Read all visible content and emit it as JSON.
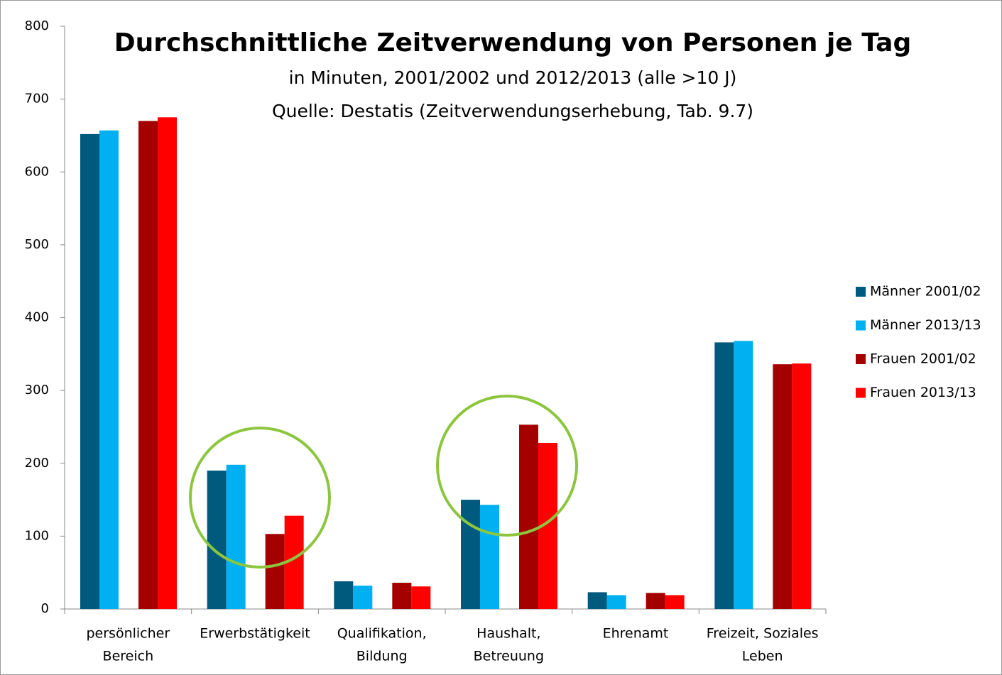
{
  "chart_data": {
    "type": "bar",
    "title": "Durchschnittliche Zeitverwendung von Personen je Tag",
    "subtitle": [
      "in Minuten, 2001/2002 und 2012/2013 (alle >10 J)",
      "Quelle: Destatis (Zeitverwendungserhebung,  Tab. 9.7)"
    ],
    "categories": [
      [
        "persönlicher",
        "Bereich"
      ],
      [
        "Erwerbstätigkeit"
      ],
      [
        "Qualifikation,",
        "Bildung"
      ],
      [
        "Haushalt,",
        "Betreuung"
      ],
      [
        "Ehrenamt"
      ],
      [
        "Freizeit, Soziales",
        "Leben"
      ]
    ],
    "series": [
      {
        "name": "Männer 2001/02",
        "color": "#005a7d",
        "values": [
          652,
          190,
          38,
          150,
          23,
          366
        ]
      },
      {
        "name": "Männer 2013/13",
        "color": "#00b0f0",
        "values": [
          657,
          198,
          32,
          143,
          19,
          368
        ]
      },
      {
        "name": "Frauen 2001/02",
        "color": "#a50000",
        "values": [
          670,
          103,
          36,
          253,
          22,
          336
        ]
      },
      {
        "name": "Frauen 2013/13",
        "color": "#ff0000",
        "values": [
          675,
          128,
          31,
          228,
          19,
          337
        ]
      }
    ],
    "ylim": [
      0,
      800
    ],
    "yticks": [
      0,
      100,
      200,
      300,
      400,
      500,
      600,
      700,
      800
    ]
  }
}
